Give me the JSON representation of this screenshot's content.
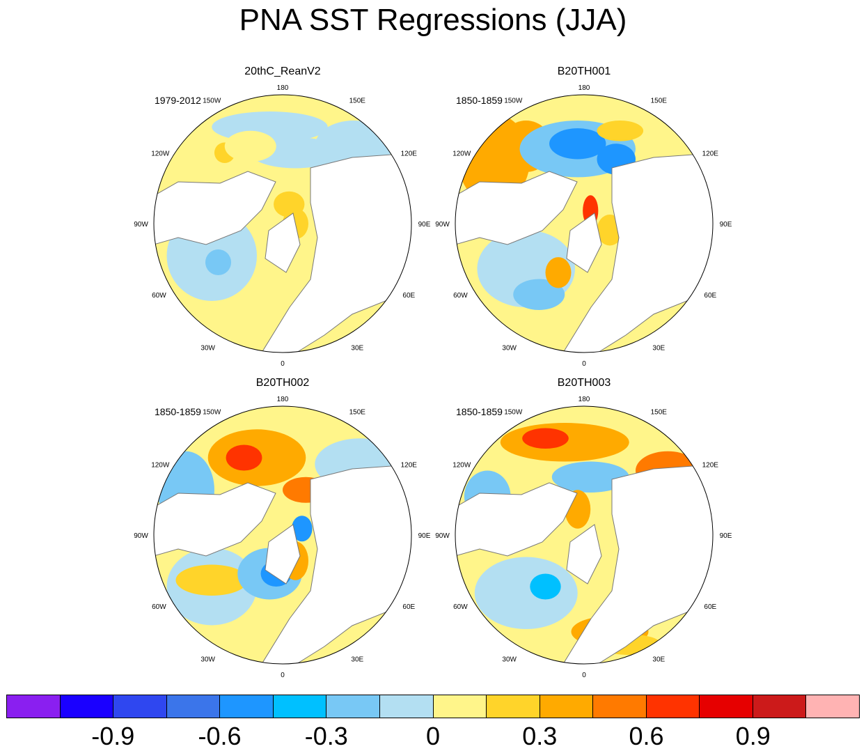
{
  "figure": {
    "title": "PNA SST Regressions (JJA)"
  },
  "panels": [
    {
      "title": "20thC_ReanV2",
      "period": "1979-2012",
      "lon_labels": {
        "n": "180",
        "nw": "150W",
        "ne": "150E",
        "wnw": "120W",
        "ene": "120E",
        "w": "90W",
        "e": "90E",
        "wsw": "60W",
        "ese": "60E",
        "sw": "30W",
        "se": "30E",
        "s": "0"
      }
    },
    {
      "title": "B20TH001",
      "period": "1850-1859",
      "lon_labels": {
        "n": "180",
        "nw": "150W",
        "ne": "150E",
        "wnw": "120W",
        "ene": "120E",
        "w": "90W",
        "e": "90E",
        "wsw": "60W",
        "ese": "60E",
        "sw": "30W",
        "se": "30E",
        "s": "0"
      }
    },
    {
      "title": "B20TH002",
      "period": "1850-1859",
      "lon_labels": {
        "n": "180",
        "nw": "150W",
        "ne": "150E",
        "wnw": "120W",
        "ene": "120E",
        "w": "90W",
        "e": "90E",
        "wsw": "60W",
        "ese": "60E",
        "sw": "30W",
        "se": "30E",
        "s": "0"
      }
    },
    {
      "title": "B20TH003",
      "period": "1850-1859",
      "lon_labels": {
        "n": "180",
        "nw": "150W",
        "ne": "150E",
        "wnw": "120W",
        "ene": "120E",
        "w": "90W",
        "e": "90E",
        "wsw": "60W",
        "ese": "60E",
        "sw": "30W",
        "se": "30E",
        "s": "0"
      }
    }
  ],
  "colorbar": {
    "colors": [
      "#8a1ff0",
      "#1a00ff",
      "#2f47f0",
      "#3b75ea",
      "#1e96ff",
      "#00c0ff",
      "#78c8f5",
      "#b3dff2",
      "#fff58a",
      "#ffd42a",
      "#ffaa00",
      "#ff7a00",
      "#ff3300",
      "#e60000",
      "#cc1a1a",
      "#ffb3b3"
    ],
    "labels": [
      "-0.9",
      "-0.6",
      "-0.3",
      "0",
      "0.3",
      "0.6",
      "0.9"
    ]
  },
  "colors": {
    "land": "#ffffff",
    "coast": "#777777",
    "neutral_pos": "#fff58a",
    "neutral_neg": "#b3dff2"
  }
}
